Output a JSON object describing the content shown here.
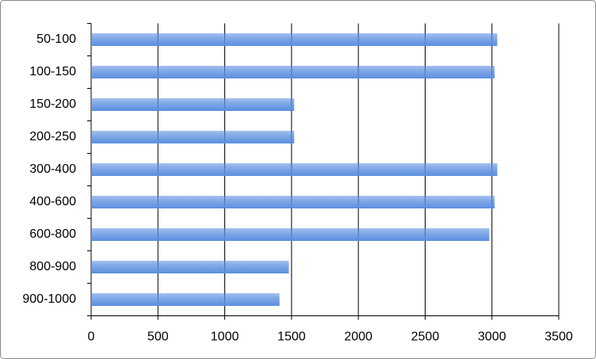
{
  "chart_data": {
    "type": "hbar",
    "categories": [
      "50-100",
      "100-150",
      "150-200",
      "200-250",
      "300-400",
      "400-600",
      "600-800",
      "800-900",
      "900-1000"
    ],
    "values": [
      3040,
      3020,
      1520,
      1520,
      3040,
      3020,
      2980,
      1480,
      1410
    ],
    "color": "#5b8ee0",
    "xlim": [
      0,
      3500
    ],
    "xticks": [
      0,
      500,
      1000,
      1500,
      2000,
      2500,
      3000,
      3500
    ],
    "grid": true
  }
}
